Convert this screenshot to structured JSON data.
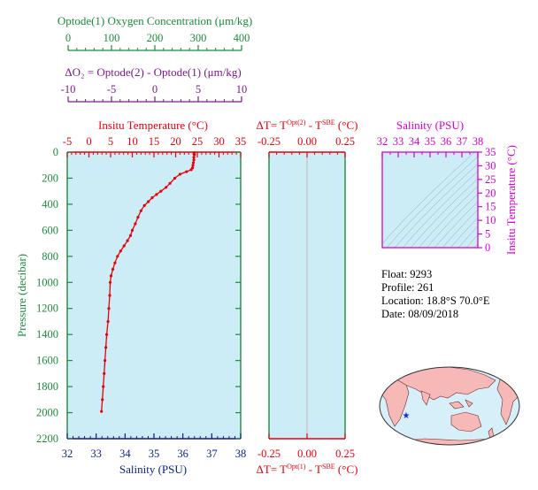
{
  "colors": {
    "oxygen": "#1e8a3c",
    "delta_o2": "#7a1b8a",
    "temperature": "#e8000b",
    "salinity": "#0a1f8a",
    "pressure": "#1e8a3c",
    "plot_bg": "#cdedf6",
    "ts_axis": "#d600d6",
    "land": "#f7b8b8",
    "ocean": "#d6eff8"
  },
  "axes": {
    "oxygen": {
      "label": "Optode(1) Oxygen Concentration (μm/kg)",
      "ticks": [
        "0",
        "100",
        "200",
        "300",
        "400"
      ]
    },
    "delta_o2": {
      "label": "ΔO₂ = Optode(2) - Optode(1)   (μm/kg)",
      "ticks": [
        "-10",
        "-5",
        "0",
        "5",
        "10"
      ]
    },
    "temperature": {
      "label": "Insitu Temperature (°C)",
      "ticks": [
        "-5",
        "0",
        "5",
        "10",
        "15",
        "20",
        "25",
        "30",
        "35"
      ]
    },
    "pressure": {
      "label": "Pressure (decibar)",
      "ticks": [
        "0",
        "200",
        "400",
        "600",
        "800",
        "1000",
        "1200",
        "1400",
        "1600",
        "1800",
        "2000",
        "2200"
      ]
    },
    "salinity_bottom": {
      "label": "Salinity (PSU)",
      "ticks": [
        "32",
        "33",
        "34",
        "35",
        "36",
        "37",
        "38"
      ]
    },
    "delta_t_top": {
      "label_pre": "ΔT= T",
      "label_sup1": "Opt(2)",
      "label_mid": " - T",
      "label_sup2": "SBE",
      "label_post": " (°C)",
      "ticks": [
        "-0.25",
        "0.00",
        "0.25"
      ]
    },
    "delta_t_bottom": {
      "label_pre": "ΔT= T",
      "label_sup1": "Opt(1)",
      "label_mid": " - T",
      "label_sup2": "SBE",
      "label_post": " (°C)",
      "ticks": [
        "-0.25",
        "0.00",
        "0.25"
      ]
    },
    "ts_salinity": {
      "label": "Salinity (PSU)",
      "ticks": [
        "32",
        "33",
        "34",
        "35",
        "36",
        "37",
        "38"
      ]
    },
    "ts_temperature": {
      "label": "Insitu Temperature (°C)",
      "ticks": [
        "0",
        "5",
        "10",
        "15",
        "20",
        "25",
        "30",
        "35"
      ]
    }
  },
  "info": {
    "float": "Float:  9293",
    "profile": "Profile:  261",
    "location": "Location:  18.8°S  70.0°E",
    "date": "Date:  08/09/2018"
  },
  "chart_data": [
    {
      "type": "line",
      "series": [
        {
          "name": "Insitu Temperature",
          "x_unit": "°C",
          "y_unit": "decibar",
          "points": [
            [
              24.3,
              5
            ],
            [
              24.3,
              20
            ],
            [
              24.2,
              40
            ],
            [
              24.2,
              60
            ],
            [
              24.1,
              80
            ],
            [
              24.0,
              100
            ],
            [
              23.9,
              120
            ],
            [
              23.6,
              135
            ],
            [
              22.5,
              150
            ],
            [
              21.0,
              170
            ],
            [
              19.8,
              200
            ],
            [
              18.7,
              240
            ],
            [
              17.8,
              270
            ],
            [
              16.6,
              300
            ],
            [
              15.6,
              325
            ],
            [
              14.6,
              350
            ],
            [
              13.7,
              380
            ],
            [
              12.8,
              410
            ],
            [
              12.0,
              450
            ],
            [
              11.3,
              500
            ],
            [
              10.7,
              550
            ],
            [
              10.0,
              600
            ],
            [
              9.6,
              640
            ],
            [
              8.9,
              680
            ],
            [
              8.1,
              720
            ],
            [
              7.3,
              760
            ],
            [
              6.6,
              800
            ],
            [
              6.0,
              850
            ],
            [
              5.5,
              900
            ],
            [
              5.1,
              950
            ],
            [
              4.9,
              1000
            ],
            [
              4.8,
              1100
            ],
            [
              4.6,
              1200
            ],
            [
              4.4,
              1300
            ],
            [
              4.1,
              1400
            ],
            [
              3.9,
              1500
            ],
            [
              3.7,
              1600
            ],
            [
              3.5,
              1700
            ],
            [
              3.3,
              1800
            ],
            [
              3.1,
              1900
            ],
            [
              2.9,
              1990
            ]
          ]
        }
      ],
      "xlim": [
        -5,
        35
      ],
      "ylim": [
        2200,
        0
      ]
    },
    {
      "type": "line",
      "series": [],
      "xlim": [
        -0.25,
        0.25
      ],
      "ylim": [
        2200,
        0
      ]
    },
    {
      "type": "scatter",
      "series": [],
      "xlim": [
        32,
        38
      ],
      "ylim": [
        0,
        35
      ]
    }
  ]
}
